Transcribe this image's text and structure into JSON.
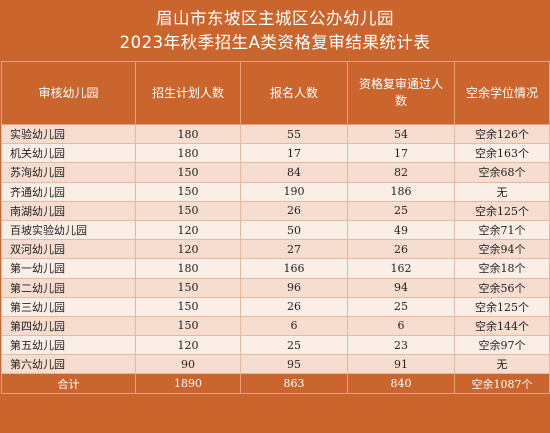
{
  "title": {
    "line1": "眉山市东坡区主城区公办幼儿园",
    "line2": "2023年秋季招生A类资格复审结果统计表"
  },
  "headers": [
    "审核幼儿园",
    "招生计划人数",
    "报名人数",
    "资格复审通过人数",
    "空余学位情况"
  ],
  "rows": [
    [
      "实验幼儿园",
      "180",
      "55",
      "54",
      "空余126个"
    ],
    [
      "机关幼儿园",
      "180",
      "17",
      "17",
      "空余163个"
    ],
    [
      "苏洵幼儿园",
      "150",
      "84",
      "82",
      "空余68个"
    ],
    [
      "齐通幼儿园",
      "150",
      "190",
      "186",
      "无"
    ],
    [
      "南湖幼儿园",
      "150",
      "26",
      "25",
      "空余125个"
    ],
    [
      "百坡实验幼儿园",
      "120",
      "50",
      "49",
      "空余71个"
    ],
    [
      "双河幼儿园",
      "120",
      "27",
      "26",
      "空余94个"
    ],
    [
      "第一幼儿园",
      "180",
      "166",
      "162",
      "空余18个"
    ],
    [
      "第二幼儿园",
      "150",
      "96",
      "94",
      "空余56个"
    ],
    [
      "第三幼儿园",
      "150",
      "26",
      "25",
      "空余125个"
    ],
    [
      "第四幼儿园",
      "150",
      "6",
      "6",
      "空余144个"
    ],
    [
      "第五幼儿园",
      "120",
      "25",
      "23",
      "空余97个"
    ],
    [
      "第六幼儿园",
      "90",
      "95",
      "91",
      "无"
    ]
  ],
  "total": [
    "合计",
    "1890",
    "863",
    "840",
    "空余1087个"
  ],
  "colors": {
    "header_bg": "#c9652d",
    "row_odd": "#f6ddd0",
    "row_even": "#fbeee7",
    "text": "#222222"
  }
}
